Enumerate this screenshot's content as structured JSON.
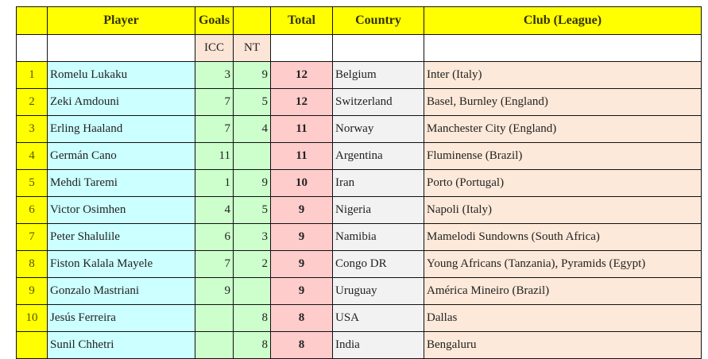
{
  "headers": {
    "rank": "",
    "player": "Player",
    "goals": "Goals",
    "goals2": "",
    "total": "Total",
    "country": "Country",
    "club": "Club (League)"
  },
  "subheaders": {
    "icc": "ICC",
    "nt": "NT"
  },
  "rows": [
    {
      "rank": "1",
      "player": "Romelu Lukaku",
      "icc": "3",
      "nt": "9",
      "total": "12",
      "country": "Belgium",
      "club": "Inter (Italy)"
    },
    {
      "rank": "2",
      "player": "Zeki Amdouni",
      "icc": "7",
      "nt": "5",
      "total": "12",
      "country": "Switzerland",
      "club": "Basel, Burnley (England)"
    },
    {
      "rank": "3",
      "player": "Erling Haaland",
      "icc": "7",
      "nt": "4",
      "total": "11",
      "country": "Norway",
      "club": "Manchester City (England)"
    },
    {
      "rank": "4",
      "player": "Germán Cano",
      "icc": "11",
      "nt": "",
      "total": "11",
      "country": "Argentina",
      "club": "Fluminense (Brazil)"
    },
    {
      "rank": "5",
      "player": "Mehdi Taremi",
      "icc": "1",
      "nt": "9",
      "total": "10",
      "country": "Iran",
      "club": "Porto (Portugal)"
    },
    {
      "rank": "6",
      "player": "Victor Osimhen",
      "icc": "4",
      "nt": "5",
      "total": "9",
      "country": "Nigeria",
      "club": "Napoli (Italy)"
    },
    {
      "rank": "7",
      "player": "Peter Shalulile",
      "icc": "6",
      "nt": "3",
      "total": "9",
      "country": "Namibia",
      "club": "Mamelodi Sundowns (South Africa)"
    },
    {
      "rank": "8",
      "player": "Fiston Kalala Mayele",
      "icc": "7",
      "nt": "2",
      "total": "9",
      "country": "Congo DR",
      "club": "Young Africans (Tanzania), Pyramids (Egypt)"
    },
    {
      "rank": "9",
      "player": "Gonzalo Mastriani",
      "icc": "9",
      "nt": "",
      "total": "9",
      "country": "Uruguay",
      "club": "América Mineiro (Brazil)"
    },
    {
      "rank": "10",
      "player": "Jesús Ferreira",
      "icc": "",
      "nt": "8",
      "total": "8",
      "country": "USA",
      "club": "Dallas"
    },
    {
      "rank": "",
      "player": "Sunil Chhetri",
      "icc": "",
      "nt": "8",
      "total": "8",
      "country": "India",
      "club": "Bengaluru"
    }
  ]
}
